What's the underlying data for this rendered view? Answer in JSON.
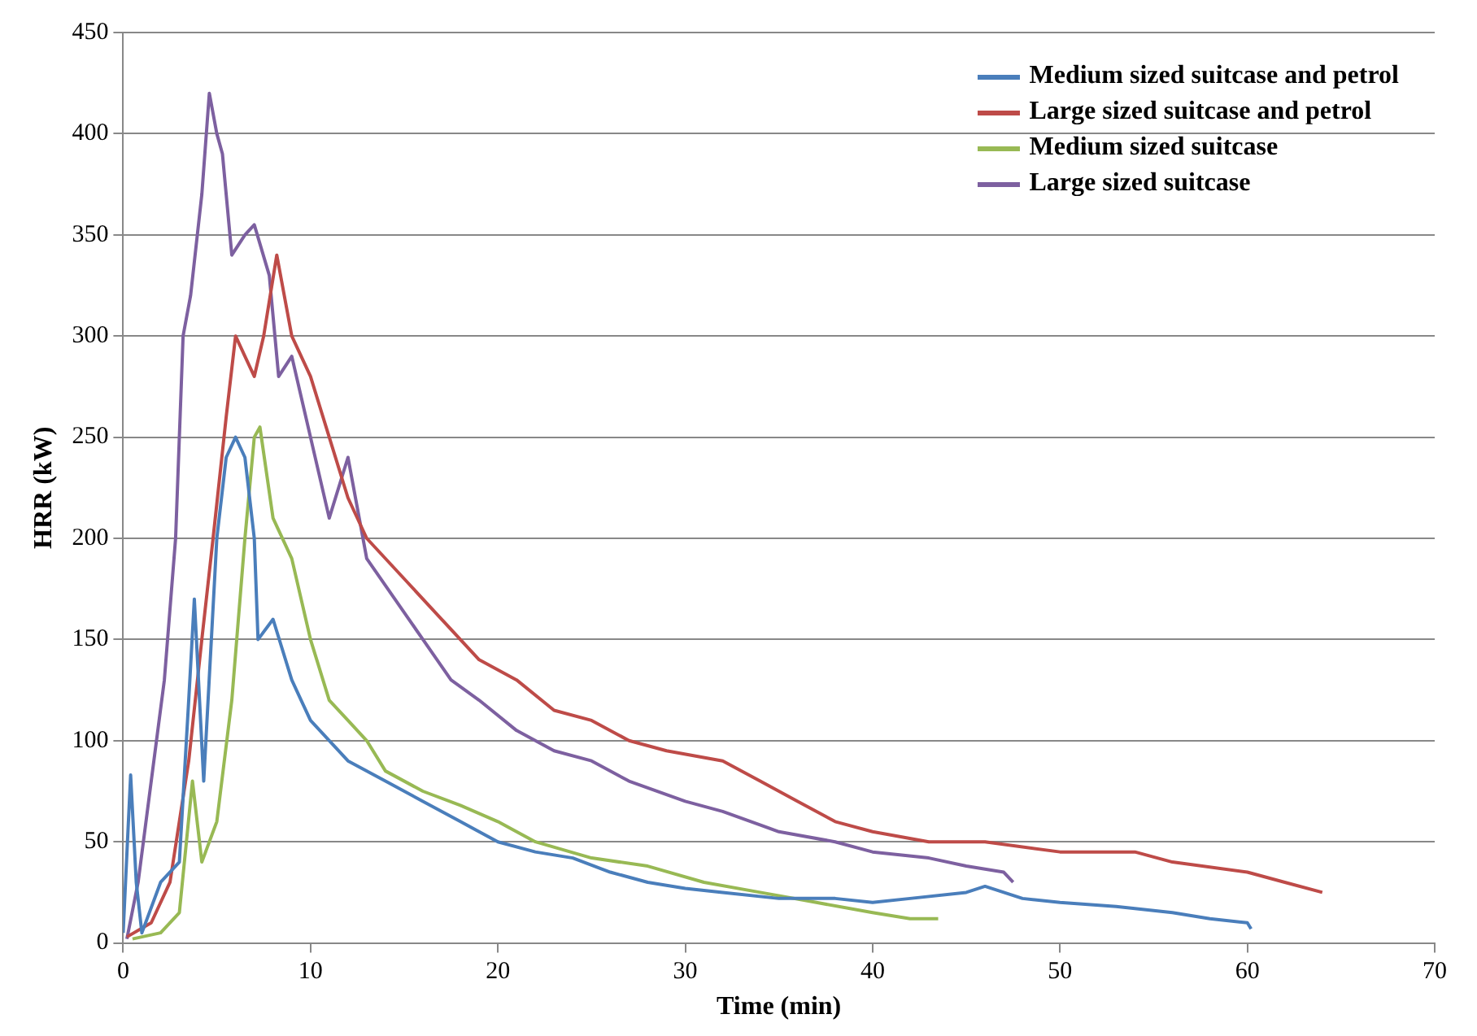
{
  "chart_data": {
    "type": "line",
    "xlabel": "Time (min)",
    "ylabel": "HRR (kW)",
    "xlim": [
      0,
      70
    ],
    "xticks": [
      0,
      10,
      20,
      30,
      40,
      50,
      60,
      70
    ],
    "ylim": [
      0,
      450
    ],
    "yticks": [
      0,
      50,
      100,
      150,
      200,
      250,
      300,
      350,
      400,
      450
    ],
    "grid": "y",
    "legend": "top right",
    "marker": "none",
    "line_style": "solid",
    "series": [
      {
        "name": "Medium sized suitcase and petrol",
        "color": "#4a7ebb",
        "x": [
          0,
          0.4,
          0.7,
          1,
          2,
          3,
          3.5,
          3.8,
          4.3,
          5,
          5.5,
          6,
          6.5,
          7,
          7.2,
          8,
          9,
          9.5,
          10,
          12,
          14,
          16,
          18,
          20,
          22,
          24,
          26,
          28,
          30,
          32,
          35,
          38,
          40,
          42,
          45,
          46,
          48,
          50,
          53,
          56,
          58,
          60,
          60.2
        ],
        "values": [
          5,
          83,
          30,
          5,
          30,
          40,
          120,
          170,
          80,
          200,
          240,
          250,
          240,
          200,
          150,
          160,
          130,
          120,
          110,
          90,
          80,
          70,
          60,
          50,
          45,
          42,
          35,
          30,
          27,
          25,
          22,
          22,
          20,
          22,
          25,
          28,
          22,
          20,
          18,
          15,
          12,
          10,
          7
        ]
      },
      {
        "name": "Large sized suitcase and petrol",
        "color": "#be4b48",
        "x": [
          0.2,
          1.5,
          2.5,
          3.5,
          4.2,
          4.8,
          5.5,
          6,
          6.5,
          7,
          7.5,
          8.2,
          9,
          10,
          11,
          12,
          13,
          15,
          17,
          19,
          21,
          23,
          25,
          27,
          29,
          32,
          34,
          36,
          38,
          40,
          43,
          46,
          50,
          54,
          56,
          60,
          62,
          64
        ],
        "values": [
          3,
          10,
          30,
          90,
          150,
          200,
          260,
          300,
          290,
          280,
          300,
          340,
          300,
          280,
          250,
          220,
          200,
          180,
          160,
          140,
          130,
          115,
          110,
          100,
          95,
          90,
          80,
          70,
          60,
          55,
          50,
          50,
          45,
          45,
          40,
          35,
          30,
          25
        ]
      },
      {
        "name": "Medium sized suitcase",
        "color": "#98b954",
        "x": [
          0.5,
          2,
          3,
          3.7,
          4.2,
          5,
          5.8,
          6.5,
          7,
          7.3,
          8,
          9,
          10,
          11,
          12,
          13,
          14,
          16,
          18,
          20,
          22,
          25,
          28,
          31,
          34,
          37,
          40,
          42,
          43.5
        ],
        "values": [
          2,
          5,
          15,
          80,
          40,
          60,
          120,
          200,
          250,
          255,
          210,
          190,
          150,
          120,
          110,
          100,
          85,
          75,
          68,
          60,
          50,
          42,
          38,
          30,
          25,
          20,
          15,
          12,
          12
        ]
      },
      {
        "name": "Large sized suitcase",
        "color": "#7d60a0",
        "x": [
          0.2,
          0.8,
          1.5,
          2.2,
          2.8,
          3.2,
          3.6,
          4.2,
          4.6,
          5,
          5.3,
          5.8,
          6.5,
          7,
          7.8,
          8.3,
          9,
          10,
          11,
          12,
          13,
          14.5,
          16,
          17.5,
          19,
          21,
          23,
          25,
          27,
          30,
          32,
          35,
          38,
          40,
          43,
          45,
          47,
          47.5
        ],
        "values": [
          2,
          30,
          80,
          130,
          200,
          300,
          320,
          370,
          420,
          400,
          390,
          340,
          350,
          355,
          330,
          280,
          290,
          250,
          210,
          240,
          190,
          170,
          150,
          130,
          120,
          105,
          95,
          90,
          80,
          70,
          65,
          55,
          50,
          45,
          42,
          38,
          35,
          30
        ]
      }
    ]
  }
}
